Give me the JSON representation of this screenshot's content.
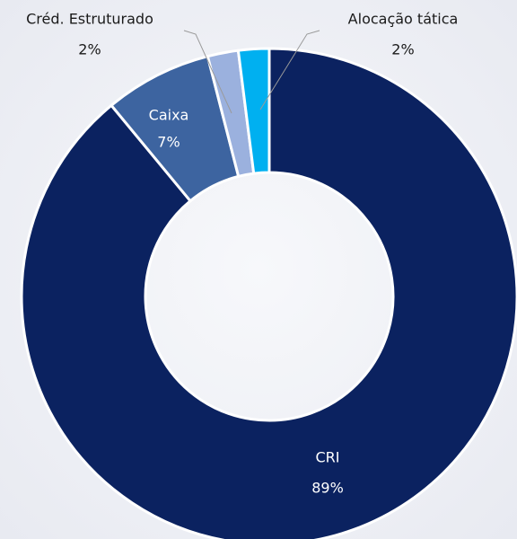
{
  "chart_data": {
    "type": "donut",
    "categories": [
      "CRI",
      "Caixa",
      "Créd. Estruturado",
      "Alocação tática"
    ],
    "values": [
      89,
      7,
      2,
      2
    ],
    "value_labels": [
      "89%",
      "7%",
      "2%",
      "2%"
    ],
    "colors": [
      "#0b2260",
      "#3d64a0",
      "#9bb1de",
      "#00b0f0"
    ]
  }
}
